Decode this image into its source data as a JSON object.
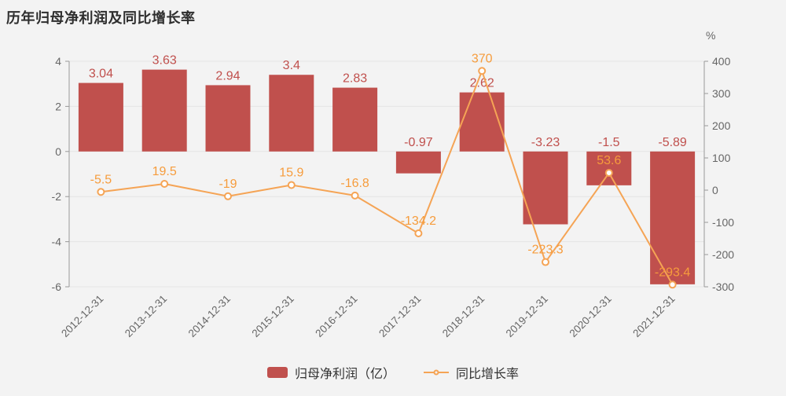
{
  "title": "历年归母净利润及同比增长率",
  "legend": {
    "bar_label": "归母净利润（亿）",
    "line_label": "同比增长率"
  },
  "colors": {
    "bar": "#c0504d",
    "bar_label": "#c0504d",
    "line": "#f5a455",
    "line_label": "#f69c3c",
    "axis_line": "#999999",
    "axis_label": "#666666",
    "grid_line": "#e4e4e4",
    "background": "#f3f3f3",
    "legend_text": "#333333"
  },
  "chart_data": {
    "type": "combo",
    "title": "历年归母净利润及同比增长率",
    "categories": [
      "2012-12-31",
      "2013-12-31",
      "2014-12-31",
      "2015-12-31",
      "2016-12-31",
      "2017-12-31",
      "2018-12-31",
      "2019-12-31",
      "2020-12-31",
      "2021-12-31"
    ],
    "series": [
      {
        "name": "归母净利润（亿）",
        "type": "bar",
        "axis": "left",
        "values": [
          3.04,
          3.63,
          2.94,
          3.4,
          2.83,
          -0.97,
          2.62,
          -3.23,
          -1.5,
          -5.89
        ]
      },
      {
        "name": "同比增长率",
        "type": "line",
        "axis": "right",
        "values": [
          -5.5,
          19.5,
          -19,
          15.9,
          -16.8,
          -134.2,
          370,
          -223.3,
          53.6,
          -293.4
        ]
      }
    ],
    "left_axis": {
      "min": -6,
      "max": 4,
      "ticks": [
        4,
        2,
        0,
        -2,
        -4,
        -6
      ]
    },
    "right_axis": {
      "min": -300,
      "max": 400,
      "ticks": [
        400,
        300,
        200,
        100,
        0,
        -100,
        -200,
        -300
      ],
      "unit": "%"
    },
    "grid": true,
    "legend_position": "bottom",
    "x_label_rotation": 45
  }
}
